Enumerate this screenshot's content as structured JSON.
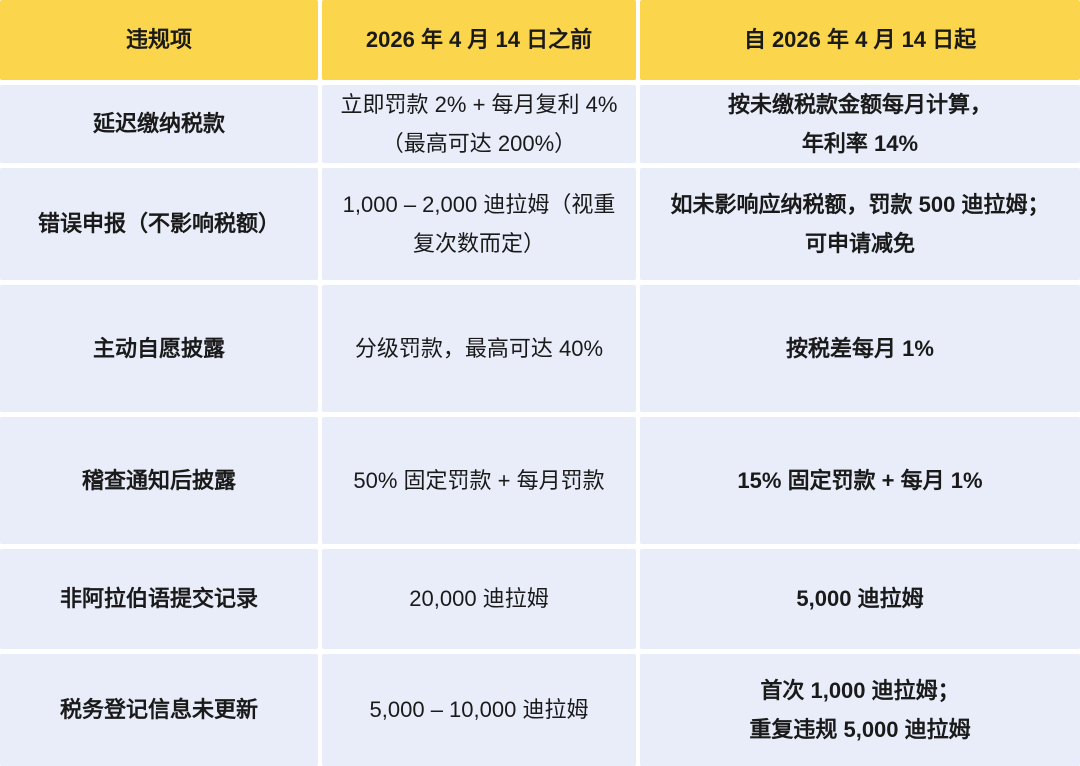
{
  "chart_data": {
    "type": "table",
    "title": "",
    "columns": [
      "违规项",
      "2026 年 4 月 14 日之前",
      "自 2026 年 4 月 14 日起"
    ],
    "rows": [
      [
        "延迟缴纳税款",
        "立即罚款 2% + 每月复利 4%\n（最高可达 200%）",
        "按未缴税款金额每月计算，\n年利率 14%"
      ],
      [
        "错误申报（不影响税额）",
        "1,000 – 2,000 迪拉姆（视重\n复次数而定）",
        "如未影响应纳税额，罚款 500 迪拉姆；\n可申请减免"
      ],
      [
        "主动自愿披露",
        "分级罚款，最高可达 40%",
        "按税差每月 1%"
      ],
      [
        "稽查通知后披露",
        "50% 固定罚款 + 每月罚款",
        "15% 固定罚款 + 每月 1%"
      ],
      [
        "非阿拉伯语提交记录",
        "20,000 迪拉姆",
        "5,000 迪拉姆"
      ],
      [
        "税务登记信息未更新",
        "5,000 – 10,000 迪拉姆",
        "首次 1,000 迪拉姆；\n重复违规 5,000 迪拉姆"
      ]
    ],
    "layout": {
      "grid": "off",
      "header_position": "top"
    }
  },
  "colors": {
    "header_bg": "#FBD54B",
    "cell_bg": "#E8EDF9",
    "gap_bg": "#FFFFFF",
    "text": "#1A1A1A"
  }
}
